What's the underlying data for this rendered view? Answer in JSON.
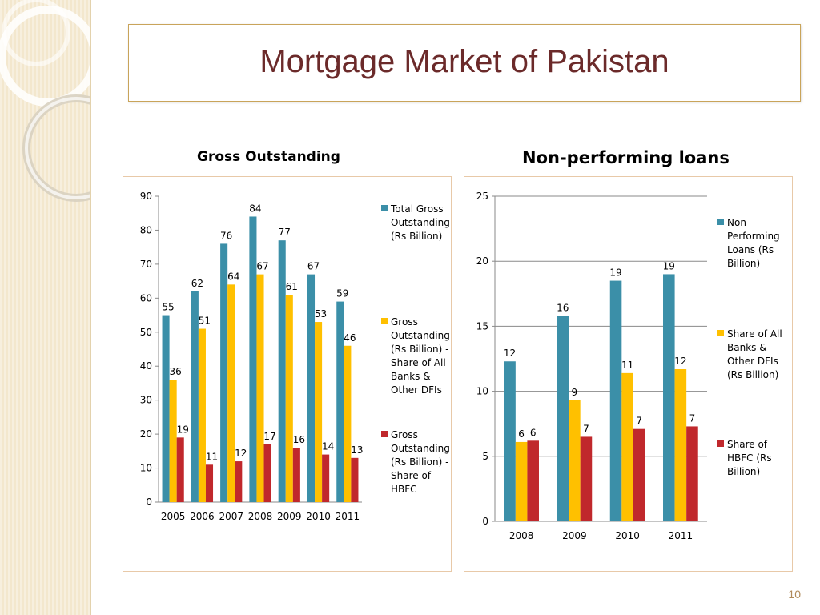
{
  "page": {
    "title": "Mortgage Market of Pakistan",
    "page_number": "10"
  },
  "colors": {
    "teal": "#3b8fa8",
    "gold": "#ffc000",
    "red": "#c0282c",
    "title": "#6b2a2a"
  },
  "chart_data": [
    {
      "type": "bar",
      "title": "Gross Outstanding",
      "categories": [
        "2005",
        "2006",
        "2007",
        "2008",
        "2009",
        "2010",
        "2011"
      ],
      "ylim": [
        0,
        90
      ],
      "yticks": [
        0,
        10,
        20,
        30,
        40,
        50,
        60,
        70,
        80,
        90
      ],
      "grid": false,
      "legend_position": "right",
      "series": [
        {
          "name": "Total Gross Outstanding (Rs Billion)",
          "legend_lines": [
            "Total Gross",
            "Outstanding",
            "(Rs Billion)"
          ],
          "color": "#3b8fa8",
          "values": [
            55,
            62,
            76,
            84,
            77,
            67,
            59
          ]
        },
        {
          "name": "Gross Outstanding (Rs Billion) - Share of All Banks & Other DFIs",
          "legend_lines": [
            "Gross",
            "Outstanding",
            "(Rs Billion) -",
            "Share of All",
            "Banks &",
            "Other DFIs"
          ],
          "color": "#ffc000",
          "values": [
            36,
            51,
            64,
            67,
            61,
            53,
            46
          ]
        },
        {
          "name": "Gross Outstanding (Rs Billion) - Share of HBFC",
          "legend_lines": [
            "Gross",
            "Outstanding",
            "(Rs Billion) -",
            "Share of",
            "HBFC"
          ],
          "color": "#c0282c",
          "values": [
            19,
            11,
            12,
            17,
            16,
            14,
            13
          ]
        }
      ]
    },
    {
      "type": "bar",
      "title": "Non-performing loans",
      "categories": [
        "2008",
        "2009",
        "2010",
        "2011"
      ],
      "ylim": [
        0,
        25
      ],
      "yticks": [
        0,
        5,
        10,
        15,
        20,
        25
      ],
      "grid": true,
      "legend_position": "right",
      "series": [
        {
          "name": "Non-Performing Loans (Rs Billion)",
          "legend_lines": [
            "Non-",
            "Performing",
            "Loans (Rs",
            "Billion)"
          ],
          "color": "#3b8fa8",
          "values": [
            12,
            16,
            19,
            19
          ],
          "labels": [
            "12",
            "16",
            "19",
            "19"
          ],
          "exact": [
            12.3,
            15.8,
            18.5,
            19.0
          ]
        },
        {
          "name": "Share of All Banks & Other DFIs (Rs Billion)",
          "legend_lines": [
            "Share of All",
            "Banks &",
            "Other DFIs",
            "(Rs Billion)"
          ],
          "color": "#ffc000",
          "values": [
            6,
            9,
            11,
            12
          ],
          "labels": [
            "6",
            "9",
            "11",
            "12"
          ],
          "exact": [
            6.1,
            9.3,
            11.4,
            11.7
          ]
        },
        {
          "name": "Share of HBFC (Rs Billion)",
          "legend_lines": [
            "Share of",
            "HBFC (Rs",
            "Billion)"
          ],
          "color": "#c0282c",
          "values": [
            6,
            7,
            7,
            7
          ],
          "labels": [
            "6",
            "7",
            "7",
            "7"
          ],
          "exact": [
            6.2,
            6.5,
            7.1,
            7.3
          ]
        }
      ]
    }
  ]
}
